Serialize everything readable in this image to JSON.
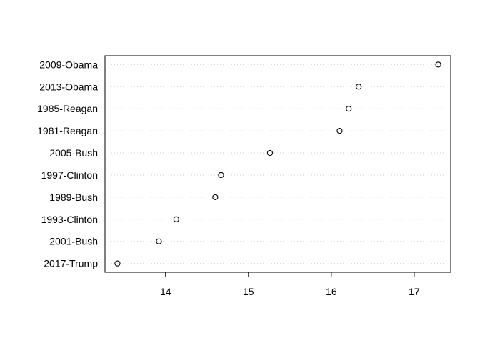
{
  "chart_data": {
    "type": "scatter",
    "style": "dotchart",
    "categories": [
      "2017-Trump",
      "2001-Bush",
      "1993-Clinton",
      "1989-Bush",
      "1997-Clinton",
      "2005-Bush",
      "1981-Reagan",
      "1985-Reagan",
      "2013-Obama",
      "2009-Obama"
    ],
    "values": [
      13.42,
      13.92,
      14.13,
      14.6,
      14.67,
      15.26,
      16.1,
      16.21,
      16.33,
      17.29
    ],
    "xlim": [
      13.27,
      17.44
    ],
    "xticks": [
      14,
      15,
      16,
      17
    ],
    "title": "",
    "xlabel": "",
    "ylabel": "",
    "grid": "dotted horizontal lines per category",
    "legend": "none",
    "colors": {
      "point": "#000000",
      "grid": "#d3d3d3",
      "axis": "#000000"
    }
  }
}
